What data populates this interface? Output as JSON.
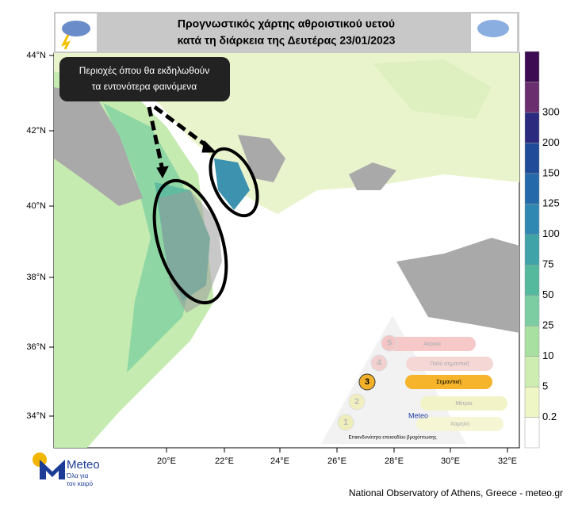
{
  "header": {
    "title_line1": "Προγνωστικός χάρτης αθροιστικού υετού",
    "title_line2": "κατά τη διάρκεια της Δευτέρας 23/01/2023"
  },
  "callout": {
    "line1": "Περιοχές όπου θα εκδηλωθούν",
    "line2": "τα εντονότερα φαινόμενα"
  },
  "latitude_labels": [
    "44°N",
    "42°N",
    "40°N",
    "38°N",
    "36°N",
    "34°N"
  ],
  "longitude_labels": [
    "20°E",
    "22°E",
    "24°E",
    "26°E",
    "28°E",
    "30°E",
    "32°E"
  ],
  "colorbar": {
    "labels": [
      "0.2",
      "5",
      "10",
      "25",
      "50",
      "75",
      "100",
      "125",
      "150",
      "200",
      "300"
    ],
    "colors": [
      "#ffffff",
      "#eef6c6",
      "#cdeeb0",
      "#a8e0a2",
      "#7dcda2",
      "#55b99e",
      "#3fa3a8",
      "#2f88b2",
      "#2669ab",
      "#1f4b98",
      "#2b2a7e",
      "#6a2e6e",
      "#3c0b52"
    ]
  },
  "risk": {
    "levels": [
      "1",
      "2",
      "3",
      "4",
      "5"
    ],
    "names": [
      "Χαμηλή",
      "Μέτρια",
      "Σημαντική",
      "Πολύ σημαντική",
      "Ακραία"
    ],
    "caption": "Επικινδυνότητα επεισοδίου βροχόπτωσης",
    "logo_small": "Meteo"
  },
  "logo": {
    "name": "Meteo",
    "tagline_line1": "Όλα για",
    "tagline_line2": "τον καιρό"
  },
  "footer": "National Observatory of Athens, Greece - meteo.gr"
}
